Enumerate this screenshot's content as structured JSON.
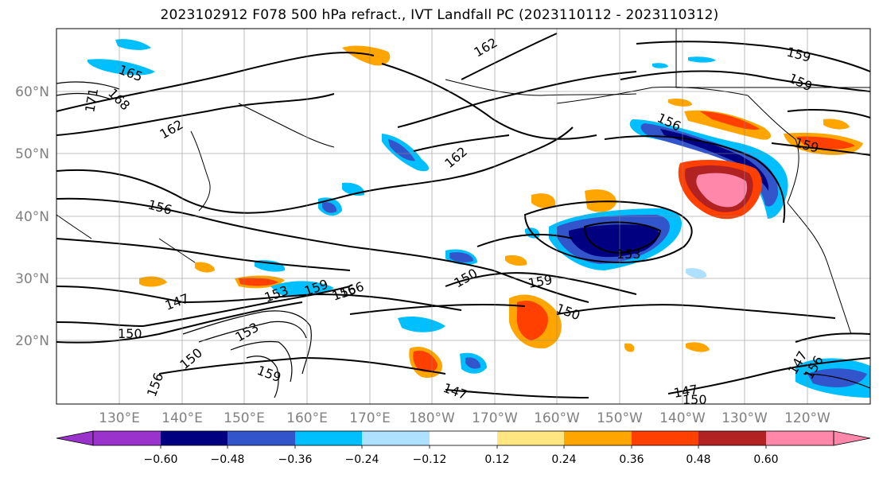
{
  "title": "2023102912 F078 500 hPa refract., IVT Landfall PC (2023110112 - 2023110312)",
  "map": {
    "lat_labels": [
      "60°N",
      "50°N",
      "40°N",
      "30°N",
      "20°N"
    ],
    "lon_labels": [
      "130°E",
      "140°E",
      "150°E",
      "160°E",
      "170°E",
      "180°W",
      "170°W",
      "160°W",
      "150°W",
      "140°W",
      "130°W",
      "120°W"
    ],
    "contour_labels": [
      "165",
      "168",
      "171",
      "162",
      "162",
      "156",
      "162",
      "159",
      "156",
      "159",
      "159",
      "156",
      "153",
      "150",
      "159",
      "150",
      "147",
      "153",
      "159",
      "156",
      "150",
      "153",
      "150",
      "156",
      "159",
      "147",
      "147",
      "150",
      "156",
      "147"
    ]
  },
  "colorbar": {
    "colors": [
      "#9933cc",
      "#000080",
      "#3355cc",
      "#00bfff",
      "#aee0ff",
      "#ffffff",
      "#ffe680",
      "#ffa500",
      "#ff4000",
      "#b22222",
      "#ff88aa"
    ],
    "tick_labels": [
      "−0.60",
      "−0.48",
      "−0.36",
      "−0.24",
      "−0.12",
      "0.12",
      "0.24",
      "0.36",
      "0.48",
      "0.60"
    ]
  }
}
